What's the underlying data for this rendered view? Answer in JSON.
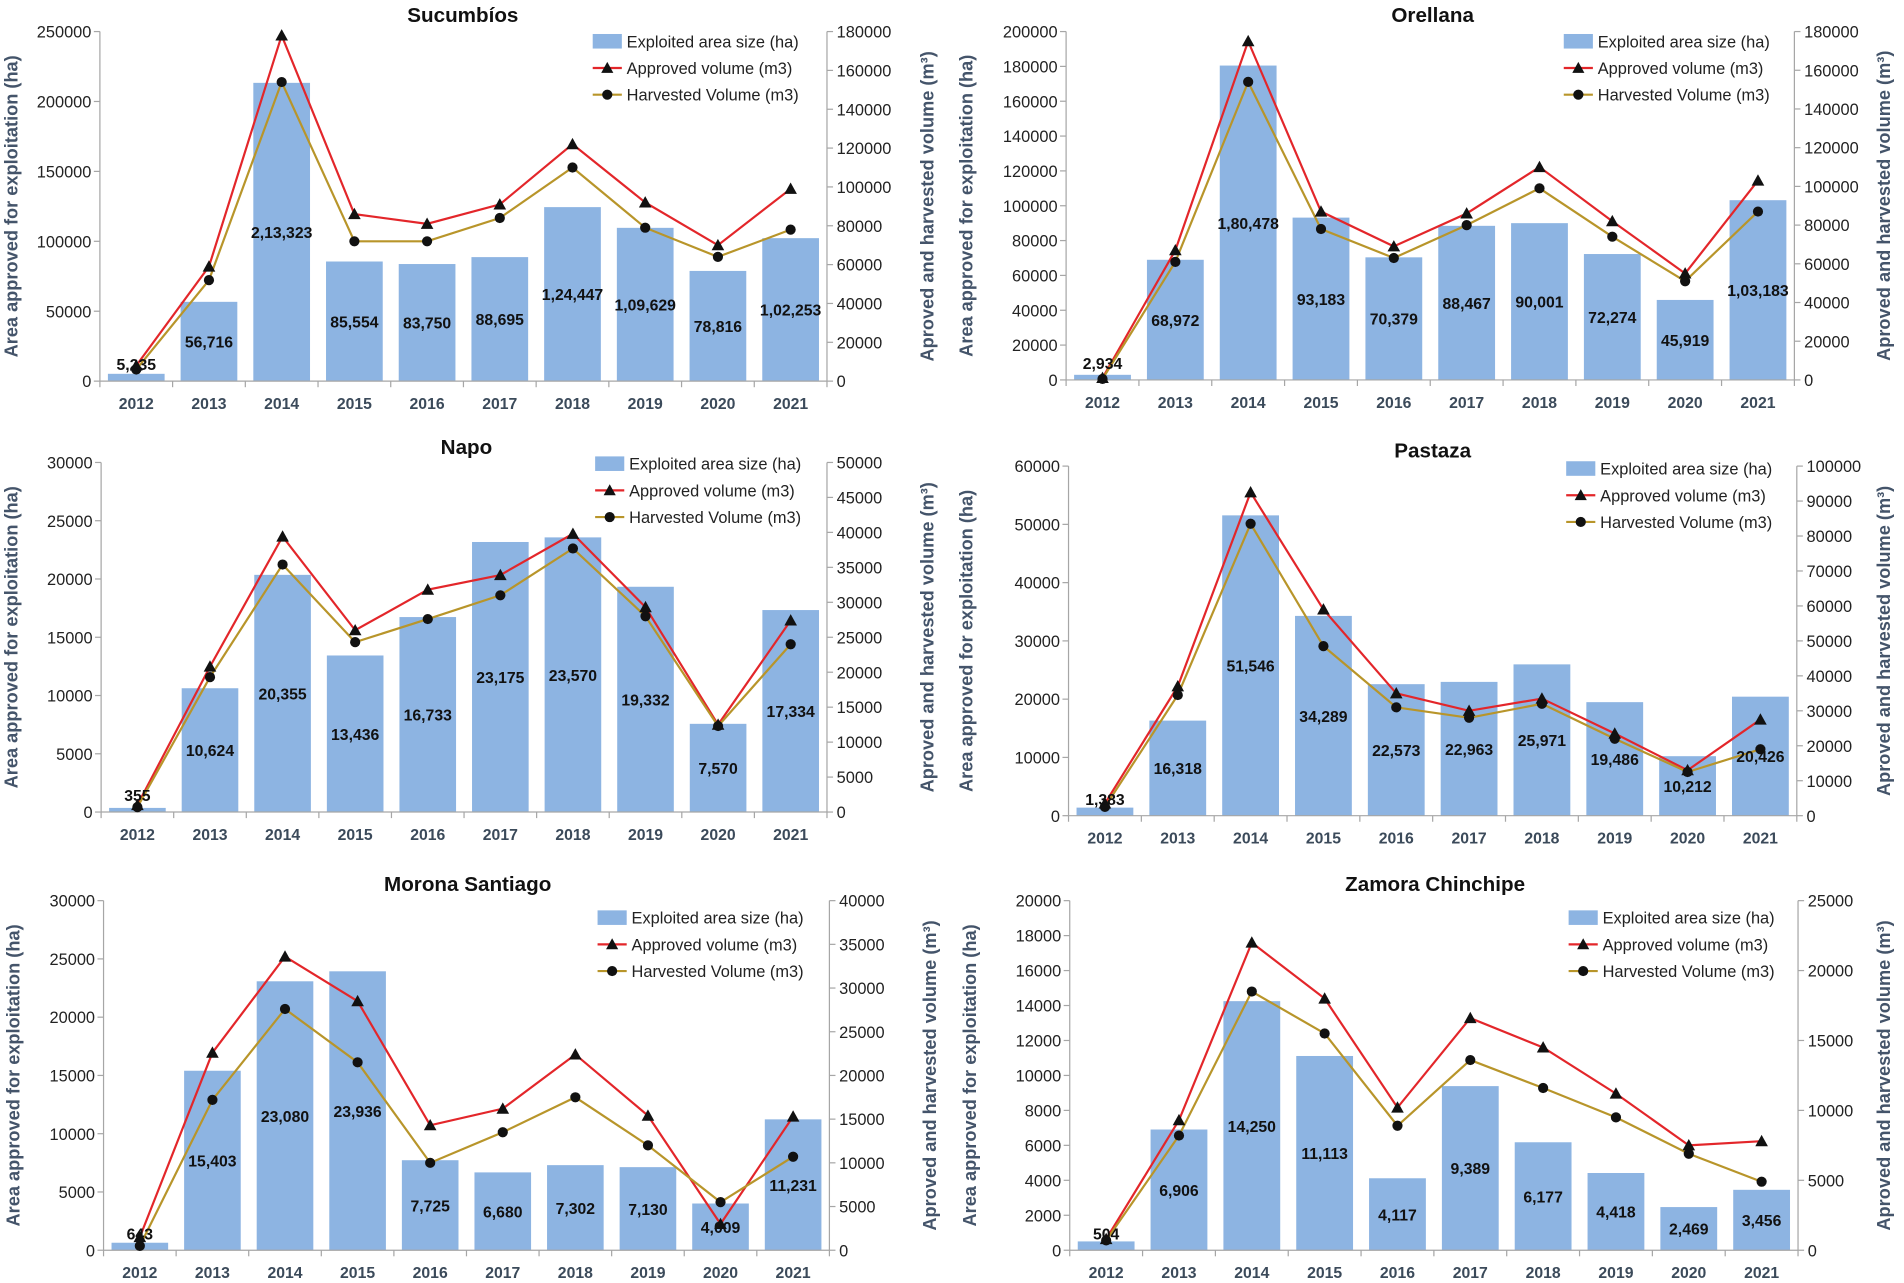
{
  "colors": {
    "bar": "#8db4e2",
    "approved": "#e3262a",
    "harvested": "#b8952a",
    "markers": "#111111",
    "axis_line": "#a6a6a6",
    "axis_title": "#44546a",
    "year_label": "#3b4a5a"
  },
  "chart_data": [
    {
      "type": "bar",
      "title": "Sucumbíos",
      "categories": [
        "2012",
        "2013",
        "2014",
        "2015",
        "2016",
        "2017",
        "2018",
        "2019",
        "2020",
        "2021"
      ],
      "ylabel": "Area approved for exploitation (ha)",
      "y2label": "Aproved and harvested volume (m³)",
      "ylim": [
        0,
        250000
      ],
      "yticks": [
        0,
        50000,
        100000,
        150000,
        200000,
        250000
      ],
      "y2lim": [
        0,
        180000
      ],
      "y2ticks": [
        0,
        20000,
        40000,
        60000,
        80000,
        100000,
        120000,
        140000,
        160000,
        180000
      ],
      "legend_position": "top-right",
      "series": [
        {
          "name": "Exploited area size (ha)",
          "type": "bar",
          "axis": "left",
          "values": [
            5235,
            56716,
            213323,
            85554,
            83750,
            88695,
            124447,
            109629,
            78816,
            102253
          ],
          "labels": [
            "5,235",
            "56,716",
            "2,13,323",
            "85,554",
            "83,750",
            "88,695",
            "1,24,447",
            "1,09,629",
            "78,816",
            "1,02,253"
          ]
        },
        {
          "name": "Approved volume (m3)",
          "type": "line",
          "axis": "right",
          "marker": "triangle",
          "values": [
            8000,
            59000,
            178000,
            86000,
            81000,
            91000,
            122000,
            92000,
            70000,
            99000
          ]
        },
        {
          "name": "Harvested Volume (m3)",
          "type": "line",
          "axis": "right",
          "marker": "circle",
          "values": [
            6000,
            52000,
            154000,
            72000,
            72000,
            84000,
            110000,
            79000,
            64000,
            78000
          ]
        }
      ]
    },
    {
      "type": "bar",
      "title": "Orellana",
      "categories": [
        "2012",
        "2013",
        "2014",
        "2015",
        "2016",
        "2017",
        "2018",
        "2019",
        "2020",
        "2021"
      ],
      "ylabel": "Area approved for exploitation (ha)",
      "y2label": "Aproved and harvested volume (m³)",
      "ylim": [
        0,
        200000
      ],
      "yticks": [
        0,
        20000,
        40000,
        60000,
        80000,
        100000,
        120000,
        140000,
        160000,
        180000,
        200000
      ],
      "y2lim": [
        0,
        180000
      ],
      "y2ticks": [
        0,
        20000,
        40000,
        60000,
        80000,
        100000,
        120000,
        140000,
        160000,
        180000
      ],
      "legend_position": "top-right",
      "series": [
        {
          "name": "Exploited area size (ha)",
          "type": "bar",
          "axis": "left",
          "values": [
            2934,
            68972,
            180478,
            93183,
            70379,
            88467,
            90001,
            72274,
            45919,
            103183
          ],
          "labels": [
            "2,934",
            "68,972",
            "1,80,478",
            "93,183",
            "70,379",
            "88,467",
            "90,001",
            "72,274",
            "45,919",
            "1,03,183"
          ]
        },
        {
          "name": "Approved volume (m3)",
          "type": "line",
          "axis": "right",
          "marker": "triangle",
          "values": [
            1000,
            67000,
            175000,
            87000,
            69000,
            86000,
            110000,
            82000,
            55000,
            103000
          ]
        },
        {
          "name": "Harvested Volume (m3)",
          "type": "line",
          "axis": "right",
          "marker": "circle",
          "values": [
            500,
            61000,
            154000,
            78000,
            63000,
            80000,
            99000,
            74000,
            51000,
            87000
          ]
        }
      ]
    },
    {
      "type": "bar",
      "title": "Napo",
      "categories": [
        "2012",
        "2013",
        "2014",
        "2015",
        "2016",
        "2017",
        "2018",
        "2019",
        "2020",
        "2021"
      ],
      "ylabel": "Area approved for exploitation (ha)",
      "y2label": "Aproved and harvested volume (m³)",
      "ylim": [
        0,
        30000
      ],
      "yticks": [
        0,
        5000,
        10000,
        15000,
        20000,
        25000,
        30000
      ],
      "y2lim": [
        0,
        50000
      ],
      "y2ticks": [
        0,
        5000,
        10000,
        15000,
        20000,
        25000,
        30000,
        35000,
        40000,
        45000,
        50000
      ],
      "legend_position": "top-right",
      "series": [
        {
          "name": "Exploited area size (ha)",
          "type": "bar",
          "axis": "left",
          "values": [
            355,
            10624,
            20355,
            13436,
            16733,
            23175,
            23570,
            19332,
            7570,
            17334
          ],
          "labels": [
            "355",
            "10,624",
            "20,355",
            "13,436",
            "16,733",
            "23,175",
            "23,570",
            "19,332",
            "7,570",
            "17,334"
          ]
        },
        {
          "name": "Approved volume (m3)",
          "type": "line",
          "axis": "right",
          "marker": "triangle",
          "values": [
            1000,
            20800,
            39400,
            26000,
            31800,
            33900,
            39800,
            29300,
            12500,
            27400
          ]
        },
        {
          "name": "Harvested Volume (m3)",
          "type": "line",
          "axis": "right",
          "marker": "circle",
          "values": [
            700,
            19300,
            35400,
            24300,
            27600,
            31000,
            37700,
            28000,
            12300,
            24000
          ]
        }
      ]
    },
    {
      "type": "bar",
      "title": "Pastaza",
      "categories": [
        "2012",
        "2013",
        "2014",
        "2015",
        "2016",
        "2017",
        "2018",
        "2019",
        "2020",
        "2021"
      ],
      "ylabel": "Area approved for exploitation (ha)",
      "y2label": "Aproved and harvested volume (m³)",
      "ylim": [
        0,
        60000
      ],
      "yticks": [
        0,
        10000,
        20000,
        30000,
        40000,
        50000,
        60000
      ],
      "y2lim": [
        0,
        100000
      ],
      "y2ticks": [
        0,
        10000,
        20000,
        30000,
        40000,
        50000,
        60000,
        70000,
        80000,
        90000,
        100000
      ],
      "legend_position": "top-right",
      "series": [
        {
          "name": "Exploited area size (ha)",
          "type": "bar",
          "axis": "left",
          "values": [
            1383,
            16318,
            51546,
            34289,
            22573,
            22963,
            25971,
            19486,
            10212,
            20426
          ],
          "labels": [
            "1,383",
            "16,318",
            "51,546",
            "34,289",
            "22,573",
            "22,963",
            "25,971",
            "19,486",
            "10,212",
            "20,426"
          ]
        },
        {
          "name": "Approved volume (m3)",
          "type": "line",
          "axis": "right",
          "marker": "triangle",
          "values": [
            3500,
            37000,
            92500,
            59000,
            35000,
            30000,
            33500,
            23500,
            13000,
            27500
          ]
        },
        {
          "name": "Harvested Volume (m3)",
          "type": "line",
          "axis": "right",
          "marker": "circle",
          "values": [
            2500,
            34500,
            83500,
            48500,
            31000,
            28000,
            32000,
            22000,
            12500,
            19000
          ]
        }
      ]
    },
    {
      "type": "bar",
      "title": "Morona Santiago",
      "categories": [
        "2012",
        "2013",
        "2014",
        "2015",
        "2016",
        "2017",
        "2018",
        "2019",
        "2020",
        "2021"
      ],
      "ylabel": "Area approved for exploitation (ha)",
      "y2label": "Aproved and harvested volume (m³)",
      "ylim": [
        0,
        30000
      ],
      "yticks": [
        0,
        5000,
        10000,
        15000,
        20000,
        25000,
        30000
      ],
      "y2lim": [
        0,
        40000
      ],
      "y2ticks": [
        0,
        5000,
        10000,
        15000,
        20000,
        25000,
        30000,
        35000,
        40000
      ],
      "legend_position": "top-right",
      "series": [
        {
          "name": "Exploited area size (ha)",
          "type": "bar",
          "axis": "left",
          "values": [
            643,
            15403,
            23080,
            23936,
            7725,
            6680,
            7302,
            7130,
            4009,
            11231
          ],
          "labels": [
            "643",
            "15,403",
            "23,080",
            "23,936",
            "7,725",
            "6,680",
            "7,302",
            "7,130",
            "4,009",
            "11,231"
          ]
        },
        {
          "name": "Approved volume (m3)",
          "type": "line",
          "axis": "right",
          "marker": "triangle",
          "values": [
            1500,
            22600,
            33600,
            28500,
            14300,
            16200,
            22400,
            15400,
            3000,
            15300
          ]
        },
        {
          "name": "Harvested Volume (m3)",
          "type": "line",
          "axis": "right",
          "marker": "circle",
          "values": [
            500,
            17200,
            27600,
            21500,
            10000,
            13500,
            17500,
            12000,
            5500,
            10700
          ]
        }
      ]
    },
    {
      "type": "bar",
      "title": "Zamora Chinchipe",
      "categories": [
        "2012",
        "2013",
        "2014",
        "2015",
        "2016",
        "2017",
        "2018",
        "2019",
        "2020",
        "2021"
      ],
      "ylabel": "Area approved for exploitation (ha)",
      "y2label": "Aproved and harvested volume (m³)",
      "ylim": [
        0,
        20000
      ],
      "yticks": [
        0,
        2000,
        4000,
        6000,
        8000,
        10000,
        12000,
        14000,
        16000,
        18000,
        20000
      ],
      "y2lim": [
        0,
        25000
      ],
      "y2ticks": [
        0,
        5000,
        10000,
        15000,
        20000,
        25000
      ],
      "legend_position": "top-right",
      "series": [
        {
          "name": "Exploited area size (ha)",
          "type": "bar",
          "axis": "left",
          "values": [
            504,
            6906,
            14250,
            11113,
            4117,
            9389,
            6177,
            4418,
            2469,
            3456
          ],
          "labels": [
            "504",
            "6,906",
            "14,250",
            "11,113",
            "4,117",
            "9,389",
            "6,177",
            "4,418",
            "2,469",
            "3,456"
          ]
        },
        {
          "name": "Approved volume (m3)",
          "type": "line",
          "axis": "right",
          "marker": "triangle",
          "values": [
            800,
            9300,
            22000,
            18000,
            10200,
            16600,
            14500,
            11200,
            7500,
            7800
          ]
        },
        {
          "name": "Harvested Volume (m3)",
          "type": "line",
          "axis": "right",
          "marker": "circle",
          "values": [
            700,
            8200,
            18500,
            15500,
            8900,
            13600,
            11600,
            9500,
            6900,
            4900
          ]
        }
      ]
    }
  ]
}
